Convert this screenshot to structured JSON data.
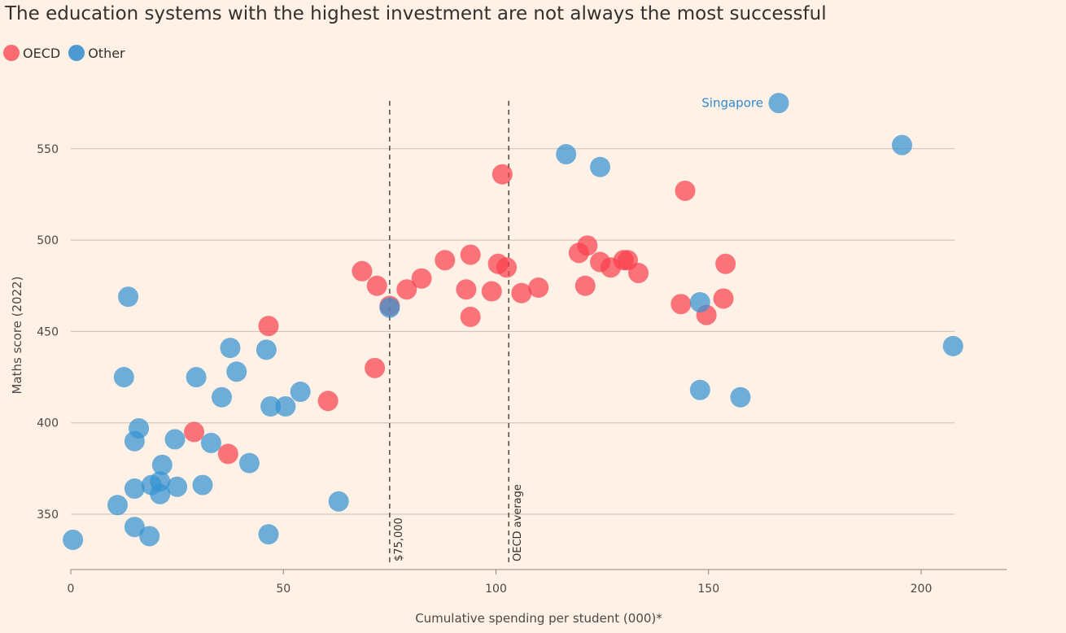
{
  "chart_data": {
    "type": "scatter",
    "title": "The education systems with the highest investment are not always the most successful",
    "xlabel": "Cumulative spending per student (000)*",
    "ylabel": "Maths score (2022)",
    "xlim": [
      0,
      220
    ],
    "ylim": [
      320,
      580
    ],
    "xticks": [
      0,
      50,
      100,
      150,
      200
    ],
    "yticks": [
      350,
      400,
      450,
      500,
      550
    ],
    "grid": "horizontal",
    "legend_placement": "top-left",
    "reference_lines": [
      {
        "x": 75,
        "label": "$75,000"
      },
      {
        "x": 103,
        "label": "OECD average"
      }
    ],
    "annotations": [
      {
        "text": "Singapore",
        "x": 166.5,
        "y": 575
      }
    ],
    "series": [
      {
        "name": "OECD",
        "color": "#f83d4b",
        "points": [
          [
            29,
            395
          ],
          [
            37,
            383
          ],
          [
            46.5,
            453
          ],
          [
            60.5,
            412
          ],
          [
            68.5,
            483
          ],
          [
            71.5,
            430
          ],
          [
            72,
            475
          ],
          [
            75,
            464
          ],
          [
            79,
            473
          ],
          [
            82.5,
            479
          ],
          [
            88,
            489
          ],
          [
            93,
            473
          ],
          [
            94,
            458
          ],
          [
            94,
            492
          ],
          [
            99,
            472
          ],
          [
            100.5,
            487
          ],
          [
            101.5,
            536
          ],
          [
            102.5,
            485
          ],
          [
            106,
            471
          ],
          [
            110,
            474
          ],
          [
            119.5,
            493
          ],
          [
            121,
            475
          ],
          [
            121.5,
            497
          ],
          [
            124.5,
            488
          ],
          [
            127,
            485
          ],
          [
            130,
            489
          ],
          [
            131,
            489
          ],
          [
            133.5,
            482
          ],
          [
            143.5,
            465
          ],
          [
            144.5,
            527
          ],
          [
            149.5,
            459
          ],
          [
            153.5,
            468
          ],
          [
            154,
            487
          ]
        ]
      },
      {
        "name": "Other",
        "color": "#3593d1",
        "points": [
          [
            0.5,
            336
          ],
          [
            11,
            355
          ],
          [
            12.5,
            425
          ],
          [
            13.5,
            469
          ],
          [
            15,
            343
          ],
          [
            15,
            364
          ],
          [
            15,
            390
          ],
          [
            16,
            397
          ],
          [
            18.5,
            338
          ],
          [
            19,
            366
          ],
          [
            21,
            361
          ],
          [
            21,
            368
          ],
          [
            21.5,
            377
          ],
          [
            24.5,
            391
          ],
          [
            25,
            365
          ],
          [
            29.5,
            425
          ],
          [
            31,
            366
          ],
          [
            33,
            389
          ],
          [
            35.5,
            414
          ],
          [
            37.5,
            441
          ],
          [
            39,
            428
          ],
          [
            42,
            378
          ],
          [
            46,
            440
          ],
          [
            46.5,
            339
          ],
          [
            47,
            409
          ],
          [
            50.5,
            409
          ],
          [
            54,
            417
          ],
          [
            63,
            357
          ],
          [
            75,
            463
          ],
          [
            116.5,
            547
          ],
          [
            124.5,
            540
          ],
          [
            148,
            418
          ],
          [
            148,
            466
          ],
          [
            157.5,
            414
          ],
          [
            166.5,
            575
          ],
          [
            195.5,
            552
          ],
          [
            207.5,
            442
          ]
        ]
      }
    ]
  }
}
